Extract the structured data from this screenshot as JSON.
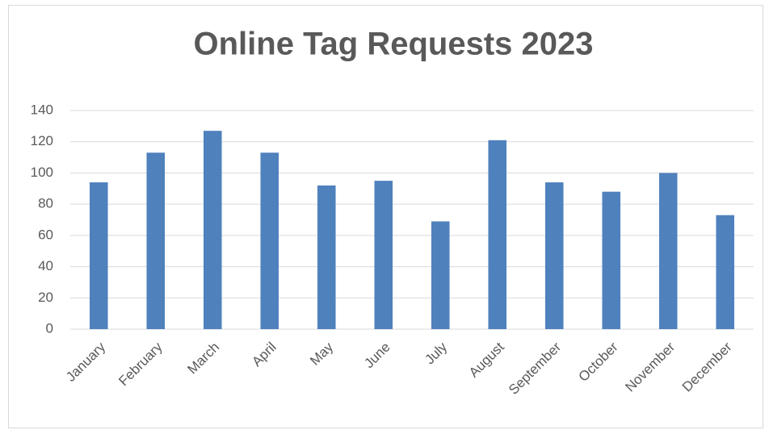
{
  "chart_data": {
    "type": "bar",
    "title": "Online Tag Requests 2023",
    "categories": [
      "January",
      "February",
      "March",
      "April",
      "May",
      "June",
      "July",
      "August",
      "September",
      "October",
      "November",
      "December"
    ],
    "values": [
      94,
      113,
      127,
      113,
      92,
      95,
      69,
      121,
      94,
      88,
      100,
      73
    ],
    "color": "#4f81bd",
    "ylim": [
      0,
      140
    ],
    "yticks": [
      0,
      20,
      40,
      60,
      80,
      100,
      120,
      140
    ],
    "grid": true
  }
}
